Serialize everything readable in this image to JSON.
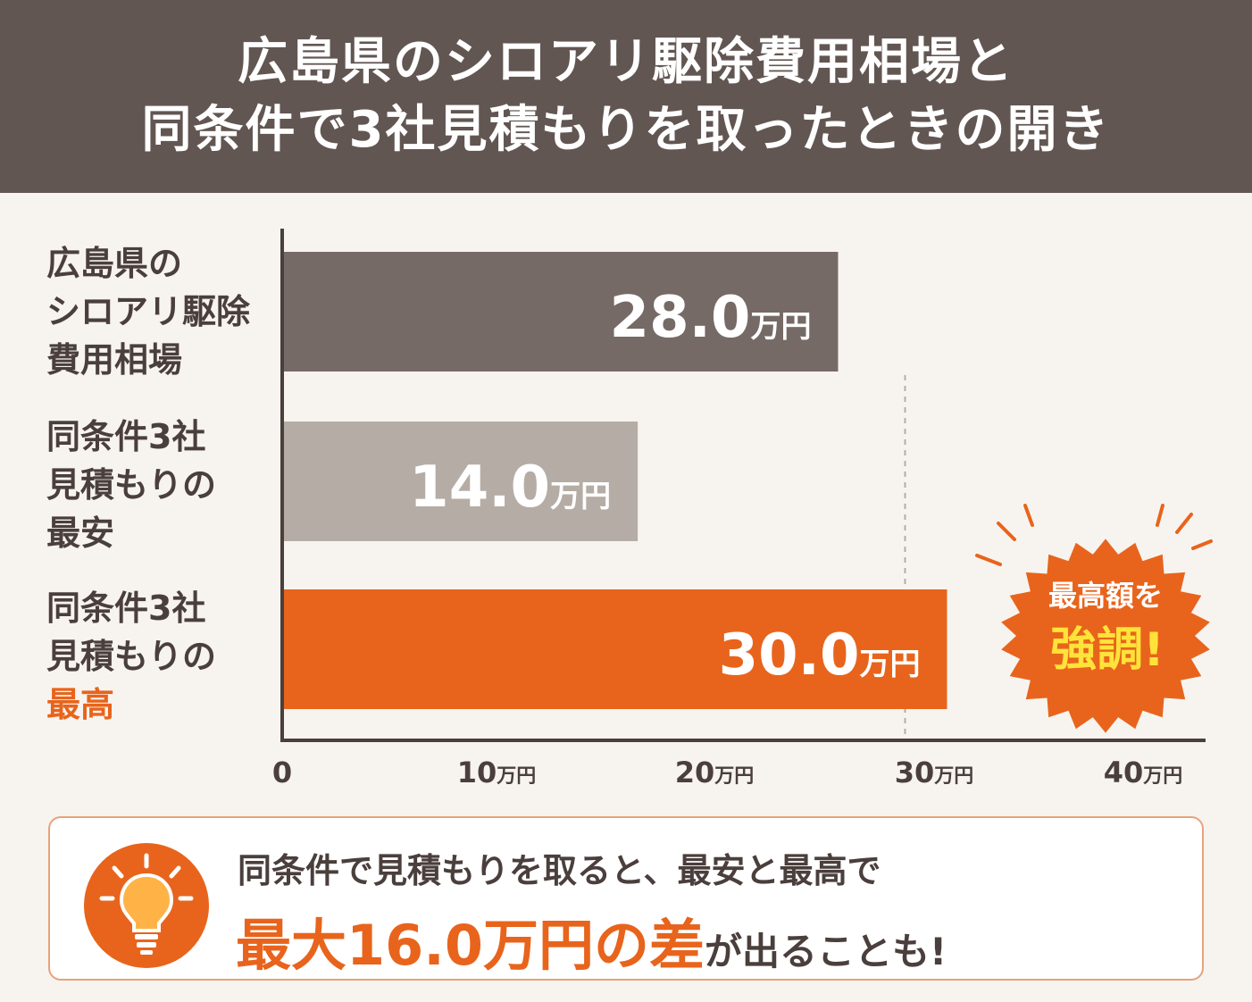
{
  "header": {
    "title_line1": "広島県のシロアリ駆除費用相場と",
    "title_line2": "同条件で3社見積もりを取ったときの開き"
  },
  "y_labels": [
    {
      "lines": [
        "広島県の",
        "シロアリ駆除",
        "費用相場"
      ]
    },
    {
      "lines": [
        "同条件3社",
        "見積もりの",
        "最安"
      ]
    },
    {
      "lines": [
        "同条件3社",
        "見積もりの"
      ],
      "highlight": "最高"
    }
  ],
  "badge": {
    "line1": "最高額を",
    "line2": "強調!"
  },
  "note": {
    "line1": "同条件で見積もりを取ると、最安と最高で",
    "line2_highlight": "最大16.0万円の差",
    "line2_rest": "が出ることも!"
  },
  "colors": {
    "header": "#625652",
    "bar_average": "#756a66",
    "bar_min": "#b5aca5",
    "bar_max": "#e8641c",
    "accent": "#e8641c",
    "text": "#4a3f3c"
  },
  "icons": {
    "note_icon": "lightbulb-icon"
  },
  "chart_data": {
    "type": "bar",
    "orientation": "horizontal",
    "categories": [
      "広島県のシロアリ駆除費用相場",
      "同条件3社見積もりの最安",
      "同条件3社見積もりの最高"
    ],
    "values": [
      28.0,
      14.0,
      30.0
    ],
    "value_labels": [
      "28.0",
      "14.0",
      "30.0"
    ],
    "value_unit": "万円",
    "x_ticks": [
      {
        "value": 0,
        "label": "0",
        "unit": ""
      },
      {
        "value": 10,
        "label": "10",
        "unit": "万円"
      },
      {
        "value": 20,
        "label": "20",
        "unit": "万円"
      },
      {
        "value": 30,
        "label": "30",
        "unit": "万円"
      },
      {
        "value": 40,
        "label": "40",
        "unit": "万円"
      }
    ],
    "reference_line": 30,
    "xlim": [
      0,
      40
    ],
    "grid": false,
    "bar_colors": [
      "#756a66",
      "#b5aca5",
      "#e8641c"
    ]
  }
}
